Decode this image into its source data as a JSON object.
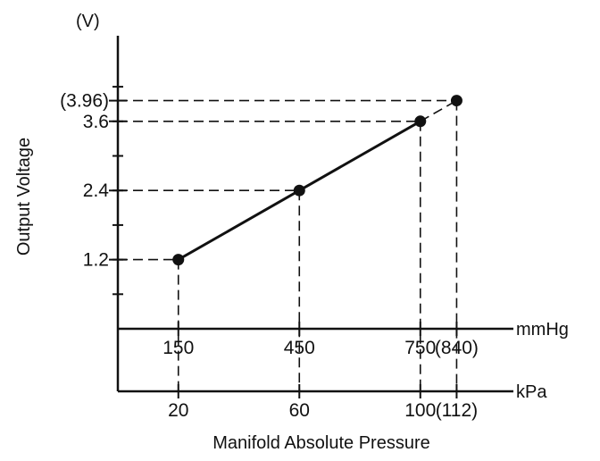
{
  "chart_data": {
    "type": "line",
    "title": "",
    "xlabel": "Manifold Absolute Pressure",
    "ylabel": "Output Voltage",
    "y_unit": "(V)",
    "x_unit_upper": "mmHg",
    "x_unit_lower": "kPa",
    "ylim": [
      0,
      4.6
    ],
    "xlim_mmHg": [
      0,
      900
    ],
    "grid": false,
    "legend": "none",
    "x_ticks_mmHg": [
      "150",
      "450",
      "750",
      "(840)"
    ],
    "x_ticks_kPa": [
      "20",
      "60",
      "100",
      "(112)"
    ],
    "y_ticks": [
      "1.2",
      "2.4",
      "3.6",
      "(3.96)"
    ],
    "series": [
      {
        "x_mmHg": [
          150,
          450,
          750,
          840
        ],
        "x_kPa": [
          20,
          60,
          100,
          112
        ],
        "y": [
          1.2,
          2.4,
          3.6,
          3.96
        ]
      }
    ]
  }
}
